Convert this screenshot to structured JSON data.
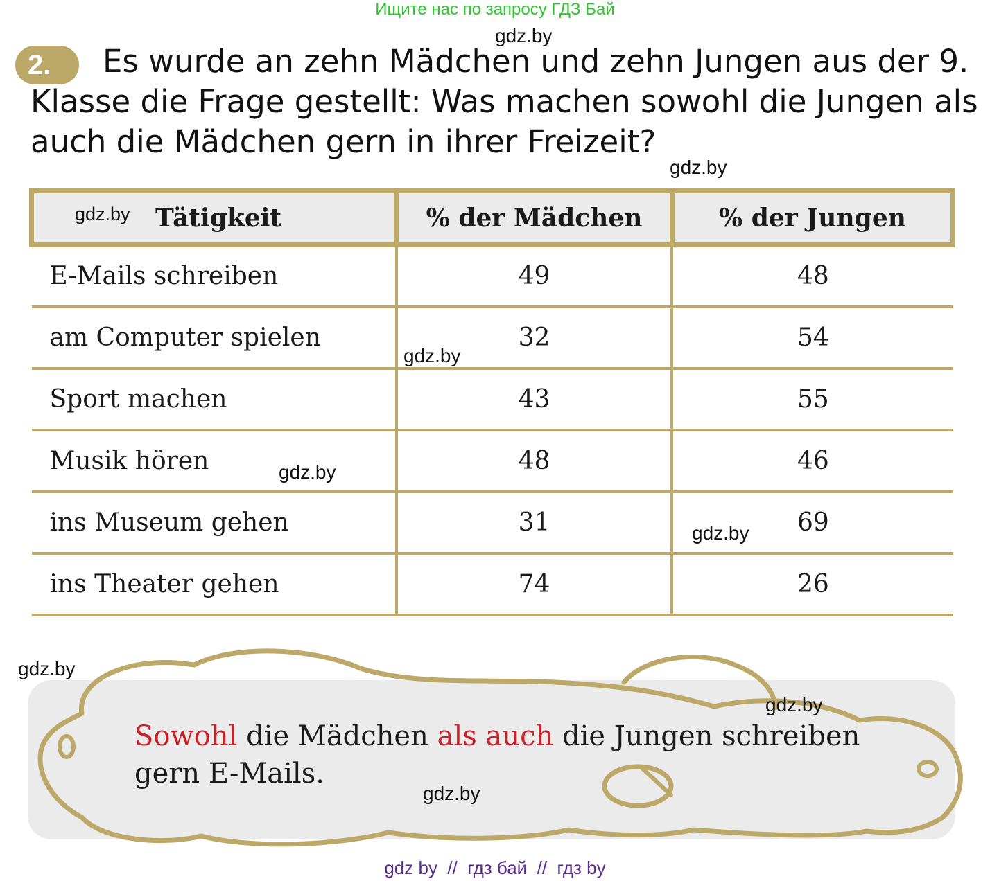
{
  "banner": "Ищите нас по запросу ГДЗ Бай",
  "watermarks": [
    "gdz.by",
    "gdz.by",
    "gdz.by",
    "gdz.by",
    "gdz.by",
    "gdz.by",
    "gdz.by",
    "gdz.by",
    "gdz.by"
  ],
  "task": {
    "number": "2.",
    "line1": "Es wurde an zehn Mädchen und zehn Jungen aus der 9.",
    "line2": "Klasse die Frage gestellt: Was machen sowohl die Jungen als",
    "line3": "auch die Mädchen gern in ihrer Freizeit?"
  },
  "table": {
    "headers": [
      "Tätigkeit",
      "% der Mädchen",
      "% der Jungen"
    ],
    "rows": [
      [
        "E-Mails schreiben",
        "49",
        "48"
      ],
      [
        "am Computer spielen",
        "32",
        "54"
      ],
      [
        "Sport machen",
        "43",
        "55"
      ],
      [
        "Musik hören",
        "48",
        "46"
      ],
      [
        "ins Museum gehen",
        "31",
        "69"
      ],
      [
        "ins Theater gehen",
        "74",
        "26"
      ]
    ]
  },
  "answer": {
    "part1": "Sowohl",
    "part2": " die Mädchen ",
    "part3": "als auch",
    "part4": " die Jungen schreiben gern E-Mails."
  },
  "footer": "gdz by  //  гдз бай  //  гдз by",
  "colors": {
    "accent": "#bca96a",
    "highlight": "#c82028",
    "banner": "#2fc52f",
    "footer": "#5b2b8f",
    "panel": "#ebebeb"
  }
}
